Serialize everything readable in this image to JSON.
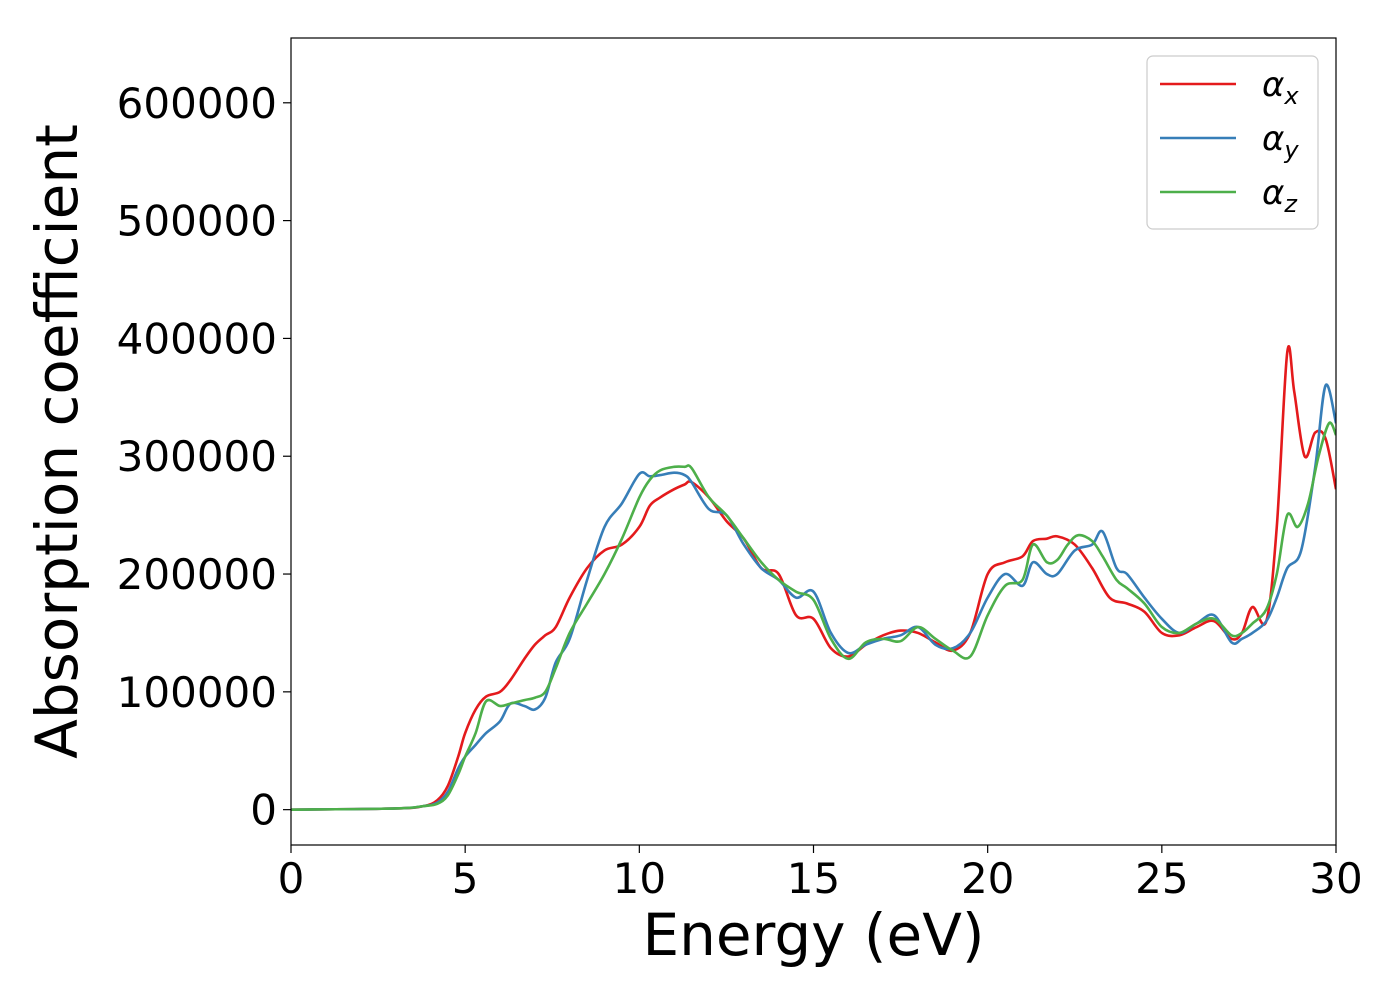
{
  "chart_data": {
    "type": "line",
    "title": "",
    "xlabel": "Energy (eV)",
    "ylabel": "Absorption coefficient",
    "xlim": [
      0,
      30
    ],
    "ylim": [
      -30000,
      655000
    ],
    "xticks": [
      0,
      5,
      10,
      15,
      20,
      25,
      30
    ],
    "xtick_labels": [
      "0",
      "5",
      "10",
      "15",
      "20",
      "25",
      "30"
    ],
    "yticks": [
      0,
      100000,
      200000,
      300000,
      400000,
      500000,
      600000
    ],
    "ytick_labels": [
      "0",
      "100000",
      "200000",
      "300000",
      "400000",
      "500000",
      "600000"
    ],
    "grid": false,
    "legend_position": "top-right",
    "series": [
      {
        "name": "α_x",
        "label_main": "α",
        "label_sub": "x",
        "color": "#e41a1c",
        "x": [
          0,
          3,
          3.8,
          4.2,
          4.5,
          4.8,
          5.0,
          5.3,
          5.6,
          6.0,
          6.3,
          6.7,
          7.0,
          7.3,
          7.6,
          8.0,
          8.5,
          9.0,
          9.5,
          10.0,
          10.3,
          10.6,
          11.0,
          11.3,
          11.5,
          12.0,
          12.5,
          13.0,
          13.5,
          14.0,
          14.5,
          15.0,
          15.5,
          16.0,
          16.5,
          17.0,
          17.5,
          18.0,
          18.5,
          19.0,
          19.5,
          20.0,
          20.5,
          21.0,
          21.3,
          21.7,
          22.0,
          22.5,
          23.0,
          23.5,
          24.0,
          24.5,
          25.0,
          25.5,
          26.0,
          26.5,
          27.0,
          27.3,
          27.6,
          28.0,
          28.3,
          28.6,
          28.8,
          29.1,
          29.4,
          29.7,
          30.0
        ],
        "y": [
          0,
          1000,
          3000,
          8000,
          20000,
          45000,
          65000,
          85000,
          96000,
          100000,
          110000,
          128000,
          140000,
          148000,
          155000,
          180000,
          205000,
          220000,
          225000,
          240000,
          258000,
          265000,
          272000,
          276000,
          278000,
          265000,
          245000,
          230000,
          205000,
          200000,
          165000,
          162000,
          137000,
          130000,
          140000,
          148000,
          152000,
          150000,
          142000,
          135000,
          150000,
          200000,
          210000,
          215000,
          228000,
          230000,
          232000,
          225000,
          205000,
          180000,
          175000,
          168000,
          150000,
          148000,
          155000,
          160000,
          145000,
          150000,
          172000,
          160000,
          240000,
          388000,
          355000,
          300000,
          320000,
          315000,
          272000
        ]
      },
      {
        "name": "α_y",
        "label_main": "α",
        "label_sub": "y",
        "color": "#377eb8",
        "x": [
          0,
          3,
          3.8,
          4.2,
          4.5,
          4.8,
          5.0,
          5.3,
          5.6,
          6.0,
          6.3,
          6.7,
          7.0,
          7.3,
          7.6,
          8.0,
          8.5,
          9.0,
          9.5,
          10.0,
          10.3,
          10.6,
          11.0,
          11.3,
          11.5,
          12.0,
          12.5,
          13.0,
          13.5,
          14.0,
          14.5,
          15.0,
          15.5,
          16.0,
          16.5,
          17.0,
          17.5,
          18.0,
          18.5,
          19.0,
          19.5,
          20.0,
          20.5,
          21.0,
          21.3,
          21.7,
          22.0,
          22.5,
          23.0,
          23.3,
          23.7,
          24.0,
          24.5,
          25.0,
          25.5,
          26.0,
          26.5,
          27.0,
          27.3,
          27.6,
          28.0,
          28.3,
          28.6,
          29.0,
          29.4,
          29.7,
          30.0
        ],
        "y": [
          0,
          1000,
          3000,
          6000,
          15000,
          35000,
          45000,
          55000,
          65000,
          75000,
          90000,
          88000,
          85000,
          95000,
          125000,
          145000,
          195000,
          240000,
          260000,
          285000,
          283000,
          284000,
          286000,
          284000,
          278000,
          255000,
          250000,
          225000,
          205000,
          195000,
          180000,
          185000,
          150000,
          133000,
          140000,
          145000,
          148000,
          155000,
          140000,
          137000,
          150000,
          180000,
          200000,
          190000,
          210000,
          200000,
          200000,
          220000,
          225000,
          236000,
          205000,
          200000,
          180000,
          162000,
          150000,
          158000,
          165000,
          142000,
          145000,
          150000,
          160000,
          180000,
          205000,
          220000,
          290000,
          360000,
          328000
        ]
      },
      {
        "name": "α_z",
        "label_main": "α",
        "label_sub": "z",
        "color": "#4daf4a",
        "x": [
          0,
          3,
          3.8,
          4.2,
          4.5,
          4.8,
          5.0,
          5.3,
          5.6,
          6.0,
          6.3,
          6.7,
          7.0,
          7.3,
          7.6,
          8.0,
          8.5,
          9.0,
          9.5,
          10.0,
          10.3,
          10.6,
          11.0,
          11.3,
          11.5,
          12.0,
          12.5,
          13.0,
          13.5,
          14.0,
          14.5,
          15.0,
          15.5,
          16.0,
          16.5,
          17.0,
          17.5,
          18.0,
          18.5,
          19.0,
          19.5,
          20.0,
          20.5,
          21.0,
          21.3,
          21.7,
          22.0,
          22.3,
          22.6,
          23.0,
          23.3,
          23.7,
          24.0,
          24.5,
          25.0,
          25.5,
          26.0,
          26.5,
          27.0,
          27.3,
          27.6,
          28.0,
          28.3,
          28.6,
          28.9,
          29.2,
          29.5,
          29.8,
          30.0
        ],
        "y": [
          0,
          1000,
          3000,
          5000,
          12000,
          30000,
          45000,
          65000,
          92000,
          88000,
          90000,
          93000,
          95000,
          100000,
          120000,
          150000,
          175000,
          200000,
          230000,
          265000,
          280000,
          288000,
          291000,
          291000,
          290000,
          265000,
          250000,
          230000,
          210000,
          195000,
          185000,
          178000,
          145000,
          128000,
          142000,
          145000,
          143000,
          155000,
          145000,
          135000,
          130000,
          165000,
          190000,
          195000,
          225000,
          210000,
          212000,
          225000,
          233000,
          228000,
          215000,
          195000,
          188000,
          175000,
          155000,
          150000,
          158000,
          162000,
          148000,
          150000,
          158000,
          170000,
          200000,
          250000,
          240000,
          260000,
          300000,
          328000,
          318000
        ]
      }
    ]
  }
}
